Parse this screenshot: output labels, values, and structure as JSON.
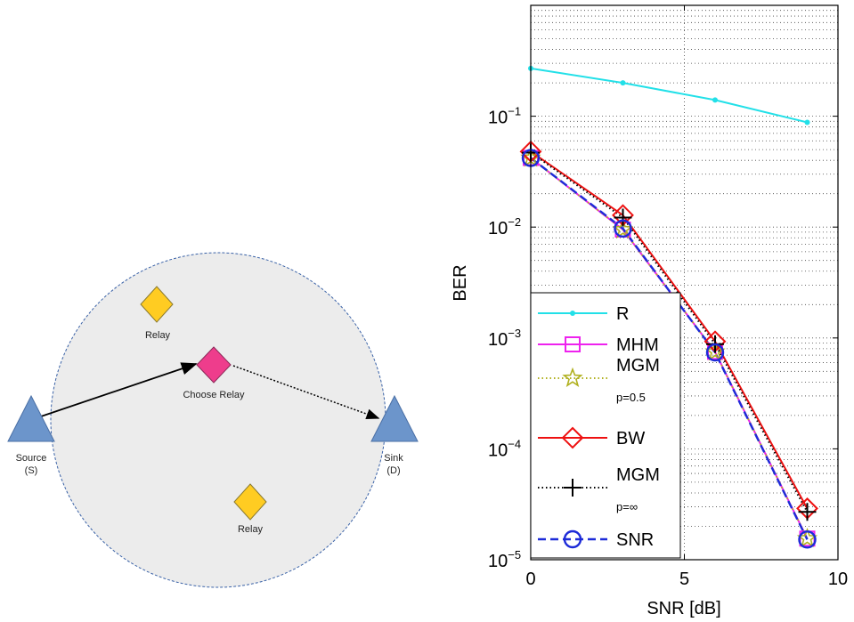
{
  "diagram": {
    "nodes": {
      "source": {
        "label": "Source",
        "sublabel": "(S)"
      },
      "sink": {
        "label": "Sink",
        "sublabel": "(D)"
      },
      "relay_top": {
        "label": "Relay"
      },
      "relay_chosen": {
        "label": "Choose Relay"
      },
      "relay_bottom": {
        "label": "Relay"
      }
    },
    "colors": {
      "node_triangle": "#6c95cb",
      "relay_fill": "#ffcc22",
      "chosen_fill": "#ee3d8c",
      "region_fill": "#ececec",
      "region_border": "#3a62a7"
    }
  },
  "chart_data": {
    "type": "line",
    "xlabel": "SNR [dB]",
    "ylabel": "BER",
    "yscale": "log",
    "xlim": [
      0,
      10
    ],
    "ylim": [
      1e-05,
      1
    ],
    "xticks": [
      0,
      5,
      10
    ],
    "yticks": [
      {
        "value": 1e-05,
        "base": "10",
        "exp": "−5"
      },
      {
        "value": 0.0001,
        "base": "10",
        "exp": "−4"
      },
      {
        "value": 0.001,
        "base": "10",
        "exp": "−3"
      },
      {
        "value": 0.01,
        "base": "10",
        "exp": "−2"
      },
      {
        "value": 0.1,
        "base": "10",
        "exp": "−1"
      }
    ],
    "grid": true,
    "legend_position": "bottom-left",
    "x": [
      0,
      3,
      6,
      9
    ],
    "series": [
      {
        "name": "R",
        "values": [
          0.27,
          0.2,
          0.14,
          0.088
        ],
        "color": "#22e0e8",
        "marker": "dot",
        "dash": "solid"
      },
      {
        "name": "MHM",
        "values": [
          0.042,
          0.0095,
          0.00075,
          1.55e-05
        ],
        "color": "#ee22ee",
        "marker": "square",
        "dash": "solid"
      },
      {
        "name": "MGM",
        "sublabel": "p=0.5",
        "values": [
          0.042,
          0.0095,
          0.00075,
          1.55e-05
        ],
        "color": "#b0b01e",
        "marker": "star",
        "dash": "dotted"
      },
      {
        "name": "BW",
        "values": [
          0.048,
          0.0128,
          0.00093,
          2.9e-05
        ],
        "color": "#ee1111",
        "marker": "diamond",
        "dash": "solid"
      },
      {
        "name": "MGM",
        "sublabel": "p=∞",
        "values": [
          0.047,
          0.0122,
          0.00088,
          2.7e-05
        ],
        "color": "#000000",
        "marker": "plus",
        "dash": "dotted"
      },
      {
        "name": "SNR",
        "values": [
          0.042,
          0.0097,
          0.00074,
          1.52e-05
        ],
        "color": "#1d2bd8",
        "marker": "circle",
        "dash": "dashed"
      }
    ]
  }
}
